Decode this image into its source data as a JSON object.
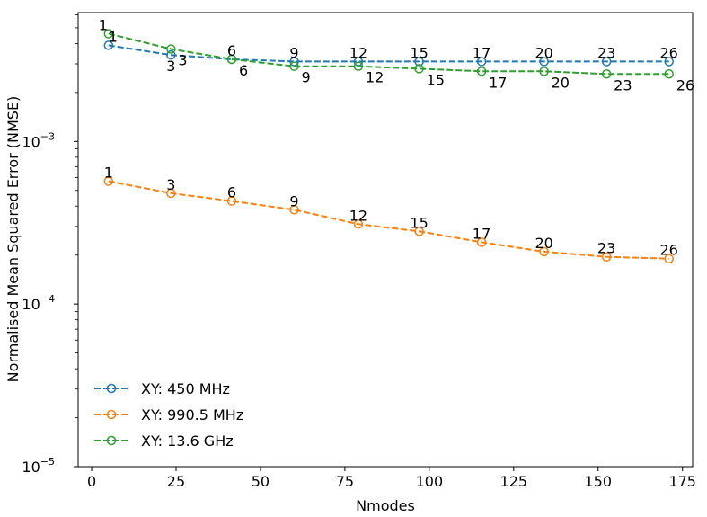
{
  "chart_data": {
    "type": "line",
    "xlabel": "Nmodes",
    "ylabel": "Normalised Mean Squared Error (NMSE)",
    "xlim": [
      -4,
      178
    ],
    "ylim": [
      1e-05,
      0.0062
    ],
    "yscale": "log",
    "x_ticks": [
      0,
      25,
      50,
      75,
      100,
      125,
      150,
      175
    ],
    "y_ticks": [
      {
        "value": 1e-05,
        "base": "10",
        "exp": "−5"
      },
      {
        "value": 0.0001,
        "base": "10",
        "exp": "−4"
      },
      {
        "value": 0.001,
        "base": "10",
        "exp": "−3"
      }
    ],
    "grid": false,
    "legend": "lower-left",
    "series": [
      {
        "name": "XY: 450 MHz",
        "color": "#1f77b4",
        "x": [
          5,
          23.5,
          41.5,
          60,
          79,
          97,
          115.5,
          134,
          152.5,
          171
        ],
        "y": [
          0.0039,
          0.0034,
          0.0032,
          0.0031,
          0.0031,
          0.0031,
          0.0031,
          0.0031,
          0.0031,
          0.0031
        ],
        "point_labels": [
          "1",
          "3",
          "6",
          "9",
          "12",
          "15",
          "17",
          "20",
          "23",
          "26"
        ]
      },
      {
        "name": "XY: 990.5 MHz",
        "color": "#ff7f0e",
        "x": [
          5,
          23.5,
          41.5,
          60,
          79,
          97,
          115.5,
          134,
          152.5,
          171
        ],
        "y": [
          0.00057,
          0.00048,
          0.00043,
          0.00038,
          0.00031,
          0.00028,
          0.00024,
          0.00021,
          0.000195,
          0.00019
        ],
        "point_labels": [
          "1",
          "3",
          "6",
          "9",
          "12",
          "15",
          "17",
          "20",
          "23",
          "26"
        ]
      },
      {
        "name": "XY: 13.6 GHz",
        "color": "#2ca02c",
        "x": [
          5,
          23.5,
          41.5,
          60,
          79,
          97,
          115.5,
          134,
          152.5,
          171
        ],
        "y": [
          0.0046,
          0.0037,
          0.0032,
          0.0029,
          0.0029,
          0.0028,
          0.0027,
          0.0027,
          0.0026,
          0.0026
        ],
        "point_labels": [
          "1",
          "3",
          "6",
          "9",
          "12",
          "15",
          "17",
          "20",
          "23",
          "26"
        ]
      }
    ]
  }
}
